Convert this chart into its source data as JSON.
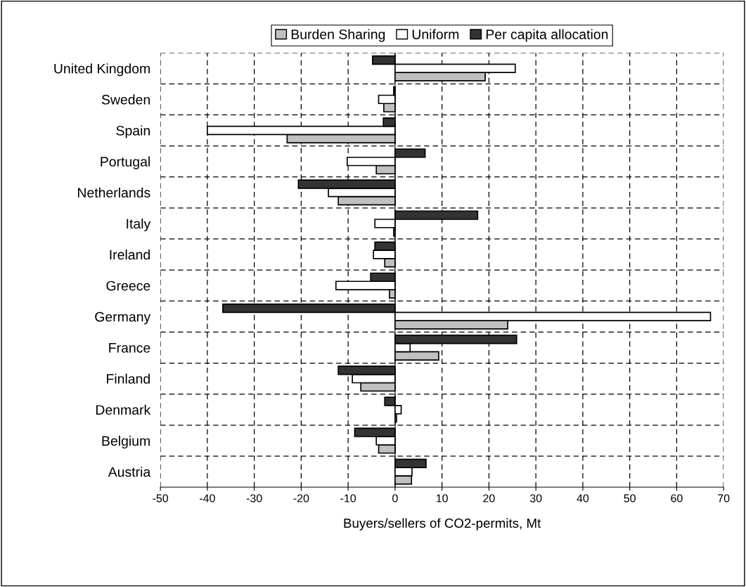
{
  "chart_data": {
    "type": "bar",
    "orientation": "horizontal",
    "xlabel": "Buyers/sellers of CO2-permits, Mt",
    "categories": [
      "United Kingdom",
      "Sweden",
      "Spain",
      "Portugal",
      "Netherlands",
      "Italy",
      "Ireland",
      "Greece",
      "Germany",
      "France",
      "Finland",
      "Denmark",
      "Belgium",
      "Austria"
    ],
    "series": [
      {
        "name": "Burden Sharing",
        "color": "#c0c0c0",
        "values": [
          19.2,
          -2.4,
          -23.0,
          -4.0,
          -12.1,
          -0.3,
          -2.2,
          -1.2,
          24.0,
          9.3,
          -7.3,
          0.3,
          -3.5,
          3.5
        ]
      },
      {
        "name": "Uniform",
        "color": "#ffffff",
        "values": [
          25.6,
          -3.5,
          -40.0,
          -10.2,
          -14.2,
          -4.3,
          -4.6,
          -12.6,
          67.2,
          3.2,
          -9.1,
          1.3,
          -4.0,
          3.6
        ]
      },
      {
        "name": "Per capita allocation",
        "color": "#333333",
        "values": [
          -4.8,
          -0.3,
          -2.5,
          6.4,
          -20.6,
          17.6,
          -4.3,
          -5.2,
          -36.7,
          25.9,
          -12.1,
          -2.2,
          -8.6,
          6.6
        ]
      }
    ],
    "xlim": [
      -50,
      70
    ],
    "xticks": [
      -50,
      -40,
      -30,
      -20,
      -10,
      0,
      10,
      20,
      30,
      40,
      50,
      60,
      70
    ],
    "grid": true,
    "legend": "top"
  }
}
